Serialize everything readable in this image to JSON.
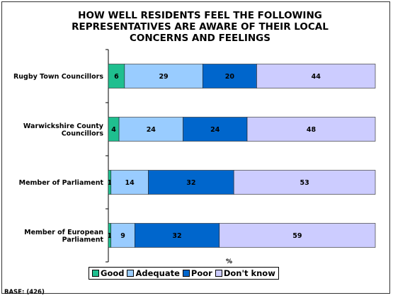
{
  "chart_data": {
    "type": "bar",
    "orientation": "horizontal",
    "stacked": true,
    "title": "HOW WELL RESIDENTS FEEL THE FOLLOWING REPRESENTATIVES ARE AWARE OF THEIR LOCAL CONCERNS AND FEELINGS",
    "xunit": "%",
    "categories": [
      "Rugby Town Councillors",
      "Warwickshire County Councillors",
      "Member of Parliament",
      "Member of European Parliament"
    ],
    "series": [
      {
        "name": "Good",
        "color": "#1fbf8f",
        "values": [
          6,
          4,
          1,
          1
        ]
      },
      {
        "name": "Adequate",
        "color": "#99ccff",
        "values": [
          29,
          24,
          14,
          9
        ]
      },
      {
        "name": "Poor",
        "color": "#0066cc",
        "values": [
          20,
          24,
          32,
          32
        ]
      },
      {
        "name": "Don't know",
        "color": "#ccccff",
        "values": [
          44,
          48,
          53,
          59
        ]
      }
    ],
    "legend_position": "bottom",
    "grid": false
  },
  "base_text": "BASE: (426)"
}
